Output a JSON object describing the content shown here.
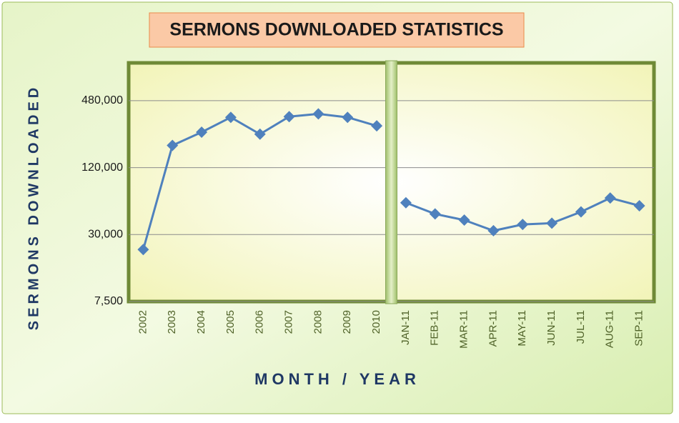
{
  "chart_data": {
    "type": "line",
    "title": "SERMONS DOWNLOADED STATISTICS",
    "x_label": "MONTH / YEAR",
    "y_label": "SERMONS DOWNLOADED",
    "categories": [
      "2002",
      "2003",
      "2004",
      "2005",
      "2006",
      "2007",
      "2008",
      "2009",
      "2010",
      "JAN-11",
      "FEB-11",
      "MAR-11",
      "APR-11",
      "MAY-11",
      "JUN-11",
      "JUL-11",
      "AUG-11",
      "SEP-11"
    ],
    "series": [
      {
        "color": "#4f81bd",
        "values": [
          22000,
          190000,
          250000,
          340000,
          240000,
          345000,
          365000,
          340000,
          285000,
          null,
          null,
          null,
          null,
          null,
          null,
          null,
          null,
          null
        ]
      },
      {
        "color": "#4f81bd",
        "values": [
          null,
          null,
          null,
          null,
          null,
          null,
          null,
          null,
          null,
          58000,
          46000,
          40500,
          32500,
          37000,
          38000,
          48000,
          64000,
          54500
        ]
      }
    ],
    "ylim": [
      7500,
      1050000
    ],
    "log_scale": true,
    "yticks": [
      {
        "value": 7500,
        "label": "7,500"
      },
      {
        "value": 30000,
        "label": "30,000"
      },
      {
        "value": 120000,
        "label": "120,000"
      },
      {
        "value": 480000,
        "label": "480,000"
      }
    ],
    "grid": true
  }
}
